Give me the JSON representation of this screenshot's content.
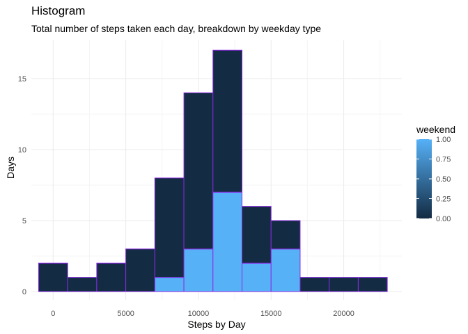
{
  "chart_data": {
    "type": "bar",
    "title": "Histogram",
    "subtitle": "Total number of steps taken each day, breakdown by weekday type",
    "xlabel": "Steps by Day",
    "ylabel": "Days",
    "xlim": [
      -1500,
      24000
    ],
    "ylim": [
      0,
      17
    ],
    "x_ticks": [
      0,
      5000,
      10000,
      15000,
      20000
    ],
    "y_ticks": [
      0,
      5,
      10,
      15
    ],
    "bins": [
      {
        "x0": -1000,
        "x1": 1000,
        "weekday": 2,
        "weekend": 0
      },
      {
        "x0": 1000,
        "x1": 3000,
        "weekday": 1,
        "weekend": 0
      },
      {
        "x0": 3000,
        "x1": 5000,
        "weekday": 2,
        "weekend": 0
      },
      {
        "x0": 5000,
        "x1": 7000,
        "weekday": 3,
        "weekend": 0
      },
      {
        "x0": 7000,
        "x1": 9000,
        "weekday": 7,
        "weekend": 1
      },
      {
        "x0": 9000,
        "x1": 11000,
        "weekday": 11,
        "weekend": 3
      },
      {
        "x0": 11000,
        "x1": 13000,
        "weekday": 10,
        "weekend": 7
      },
      {
        "x0": 13000,
        "x1": 15000,
        "weekday": 4,
        "weekend": 2
      },
      {
        "x0": 15000,
        "x1": 17000,
        "weekday": 2,
        "weekend": 3
      },
      {
        "x0": 17000,
        "x1": 19000,
        "weekday": 1,
        "weekend": 0
      },
      {
        "x0": 19000,
        "x1": 21000,
        "weekday": 1,
        "weekend": 0
      },
      {
        "x0": 21000,
        "x1": 23000,
        "weekday": 1,
        "weekend": 0
      }
    ],
    "legend": {
      "title": "weekend",
      "position": "right",
      "ticks": [
        "1.00",
        "0.75",
        "0.50",
        "0.25",
        "0.00"
      ],
      "low_color": "#132b43",
      "high_color": "#56b1f7"
    },
    "colors": {
      "weekday_fill": "#132b43",
      "weekend_fill": "#56b1f7",
      "outline": "#8a2be2",
      "grid_major": "#ebebeb",
      "grid_minor": "#f5f5f5"
    },
    "grid": true
  }
}
